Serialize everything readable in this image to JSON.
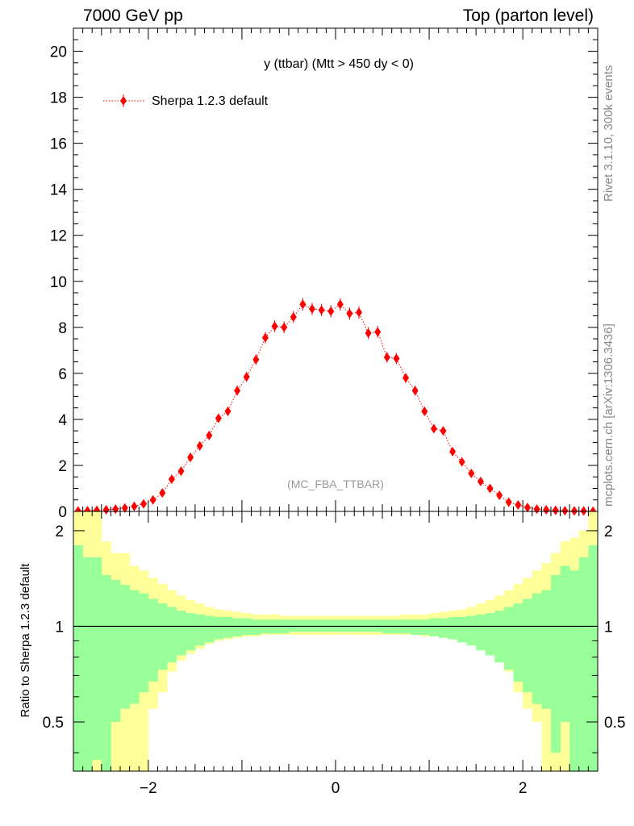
{
  "header": {
    "left": "7000 GeV pp",
    "right": "Top (parton level)"
  },
  "side_labels": {
    "top": "Rivet 3.1.10,  300k events",
    "bottom": "mcplots.cern.ch [arXiv:1306.3436]"
  },
  "chart_data": [
    {
      "type": "scatter",
      "title": "y (ttbar) (Mtt > 450 dy < 0)",
      "watermark": "(MC_FBA_TTBAR)",
      "xlabel": "",
      "ylabel": "",
      "xlim": [
        -2.8,
        2.8
      ],
      "ylim": [
        0,
        21
      ],
      "yticks": [
        "0",
        "2",
        "4",
        "6",
        "8",
        "10",
        "12",
        "14",
        "16",
        "18",
        "20"
      ],
      "legend": "top-left",
      "series": [
        {
          "name": "Sherpa 1.2.3 default",
          "color": "#ff0000",
          "x": [
            -2.75,
            -2.65,
            -2.55,
            -2.45,
            -2.35,
            -2.25,
            -2.15,
            -2.05,
            -1.95,
            -1.85,
            -1.75,
            -1.65,
            -1.55,
            -1.45,
            -1.35,
            -1.25,
            -1.15,
            -1.05,
            -0.95,
            -0.85,
            -0.75,
            -0.65,
            -0.55,
            -0.45,
            -0.35,
            -0.25,
            -0.15,
            -0.05,
            0.05,
            0.15,
            0.25,
            0.35,
            0.45,
            0.55,
            0.65,
            0.75,
            0.85,
            0.95,
            1.05,
            1.15,
            1.25,
            1.35,
            1.45,
            1.55,
            1.65,
            1.75,
            1.85,
            1.95,
            2.05,
            2.15,
            2.25,
            2.35,
            2.45,
            2.55,
            2.65,
            2.75
          ],
          "y": [
            0.02,
            0.03,
            0.05,
            0.07,
            0.1,
            0.15,
            0.22,
            0.33,
            0.5,
            0.8,
            1.4,
            1.75,
            2.35,
            2.85,
            3.3,
            4.05,
            4.35,
            5.25,
            5.85,
            6.6,
            7.55,
            8.05,
            8.0,
            8.45,
            9.0,
            8.8,
            8.75,
            8.7,
            9.0,
            8.6,
            8.65,
            7.75,
            7.8,
            6.7,
            6.65,
            5.8,
            5.25,
            4.35,
            3.6,
            3.5,
            2.6,
            2.15,
            1.65,
            1.3,
            1.0,
            0.7,
            0.4,
            0.28,
            0.17,
            0.1,
            0.07,
            0.05,
            0.03,
            0.02,
            0.02,
            0.01
          ],
          "yerr": [
            0.02,
            0.02,
            0.03,
            0.04,
            0.05,
            0.06,
            0.08,
            0.1,
            0.12,
            0.14,
            0.15,
            0.15,
            0.17,
            0.17,
            0.18,
            0.2,
            0.2,
            0.22,
            0.22,
            0.23,
            0.25,
            0.26,
            0.26,
            0.26,
            0.27,
            0.27,
            0.27,
            0.27,
            0.27,
            0.27,
            0.27,
            0.26,
            0.26,
            0.24,
            0.24,
            0.22,
            0.22,
            0.2,
            0.19,
            0.18,
            0.17,
            0.16,
            0.15,
            0.14,
            0.12,
            0.11,
            0.09,
            0.08,
            0.07,
            0.05,
            0.04,
            0.04,
            0.03,
            0.02,
            0.02,
            0.01
          ]
        }
      ]
    },
    {
      "type": "area",
      "ylabel": "Ratio to Sherpa 1.2.3 default",
      "xlim": [
        -2.8,
        2.8
      ],
      "ylim": [
        0.35,
        2.3
      ],
      "xticks": [
        "−2",
        "0",
        "2"
      ],
      "yticks": [
        "0.5",
        "1",
        "2"
      ],
      "reference": 1,
      "bins_x": [
        -2.8,
        -2.7,
        -2.6,
        -2.5,
        -2.4,
        -2.3,
        -2.2,
        -2.1,
        -2.0,
        -1.9,
        -1.8,
        -1.7,
        -1.6,
        -1.5,
        -1.4,
        -1.3,
        -1.2,
        -1.1,
        -1.0,
        -0.9,
        -0.8,
        -0.7,
        -0.6,
        -0.5,
        -0.4,
        -0.3,
        -0.2,
        -0.1,
        0.0,
        0.1,
        0.2,
        0.3,
        0.4,
        0.5,
        0.6,
        0.7,
        0.8,
        0.9,
        1.0,
        1.1,
        1.2,
        1.3,
        1.4,
        1.5,
        1.6,
        1.7,
        1.8,
        1.9,
        2.0,
        2.1,
        2.2,
        2.3,
        2.4,
        2.5,
        2.6,
        2.7,
        2.8
      ],
      "bands": [
        {
          "color": "#ffff99",
          "up": [
            2.4,
            2.4,
            2.4,
            1.85,
            1.7,
            1.7,
            1.55,
            1.5,
            1.42,
            1.36,
            1.3,
            1.25,
            1.21,
            1.18,
            1.15,
            1.13,
            1.12,
            1.11,
            1.1,
            1.09,
            1.09,
            1.09,
            1.08,
            1.08,
            1.08,
            1.08,
            1.08,
            1.08,
            1.08,
            1.08,
            1.08,
            1.08,
            1.08,
            1.08,
            1.08,
            1.09,
            1.09,
            1.09,
            1.1,
            1.11,
            1.12,
            1.13,
            1.15,
            1.18,
            1.21,
            1.25,
            1.3,
            1.36,
            1.42,
            1.5,
            1.58,
            1.7,
            1.85,
            1.9,
            2.0,
            2.4
          ],
          "down": [
            0.3,
            0.3,
            0.3,
            0.3,
            0.3,
            0.3,
            0.3,
            0.3,
            0.55,
            0.62,
            0.72,
            0.78,
            0.82,
            0.85,
            0.88,
            0.9,
            0.91,
            0.92,
            0.93,
            0.93,
            0.94,
            0.94,
            0.94,
            0.94,
            0.94,
            0.94,
            0.94,
            0.94,
            0.94,
            0.94,
            0.94,
            0.94,
            0.94,
            0.94,
            0.94,
            0.94,
            0.94,
            0.93,
            0.93,
            0.92,
            0.91,
            0.9,
            0.88,
            0.85,
            0.82,
            0.78,
            0.72,
            0.62,
            0.55,
            0.5,
            0.3,
            0.3,
            0.3,
            0.3,
            0.3,
            0.3
          ]
        },
        {
          "color": "#99ff99",
          "up": [
            1.8,
            1.65,
            1.65,
            1.45,
            1.4,
            1.35,
            1.3,
            1.27,
            1.22,
            1.18,
            1.15,
            1.12,
            1.1,
            1.09,
            1.08,
            1.07,
            1.07,
            1.06,
            1.06,
            1.05,
            1.05,
            1.05,
            1.05,
            1.05,
            1.05,
            1.05,
            1.05,
            1.05,
            1.05,
            1.05,
            1.05,
            1.05,
            1.05,
            1.05,
            1.05,
            1.05,
            1.05,
            1.05,
            1.06,
            1.06,
            1.07,
            1.07,
            1.08,
            1.09,
            1.1,
            1.12,
            1.15,
            1.18,
            1.22,
            1.27,
            1.3,
            1.45,
            1.55,
            1.5,
            1.65,
            1.8
          ],
          "down": [
            0.3,
            0.3,
            0.38,
            0.3,
            0.5,
            0.55,
            0.57,
            0.62,
            0.67,
            0.73,
            0.77,
            0.81,
            0.84,
            0.87,
            0.89,
            0.91,
            0.92,
            0.93,
            0.94,
            0.94,
            0.95,
            0.95,
            0.95,
            0.96,
            0.96,
            0.96,
            0.96,
            0.96,
            0.96,
            0.96,
            0.96,
            0.96,
            0.96,
            0.95,
            0.95,
            0.95,
            0.94,
            0.94,
            0.93,
            0.92,
            0.91,
            0.89,
            0.87,
            0.84,
            0.81,
            0.77,
            0.73,
            0.67,
            0.62,
            0.57,
            0.55,
            0.4,
            0.5,
            0.3,
            0.3,
            0.3
          ]
        }
      ]
    }
  ]
}
